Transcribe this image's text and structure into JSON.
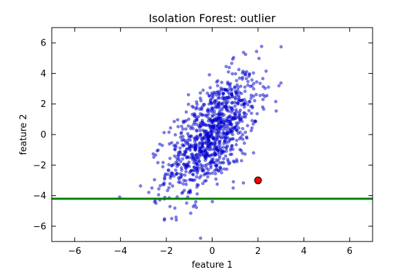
{
  "chart_data": {
    "type": "scatter",
    "title": "Isolation Forest: outlier",
    "xlabel": "feature 1",
    "ylabel": "feature 2",
    "xlim": [
      -7,
      7
    ],
    "ylim": [
      -7,
      7
    ],
    "xticks": [
      -6,
      -4,
      -2,
      0,
      2,
      4,
      6
    ],
    "yticks": [
      -6,
      -4,
      -2,
      0,
      2,
      4,
      6
    ],
    "xtick_labels": [
      "−6",
      "−4",
      "−2",
      "0",
      "2",
      "4",
      "6"
    ],
    "ytick_labels": [
      "−6",
      "−4",
      "−2",
      "0",
      "2",
      "4",
      "6"
    ],
    "grid": false,
    "points": {
      "count": 1000,
      "color": "#0000cc",
      "opacity": 0.5,
      "distribution": "bivariate normal",
      "mean": [
        0,
        0
      ],
      "std": [
        1,
        2
      ],
      "correlation": 0.6
    },
    "outlier": {
      "x": 2,
      "y": -3,
      "color": "#ff0000"
    },
    "threshold_line": {
      "orientation": "horizontal",
      "y": -4.2,
      "color": "#008000"
    }
  }
}
